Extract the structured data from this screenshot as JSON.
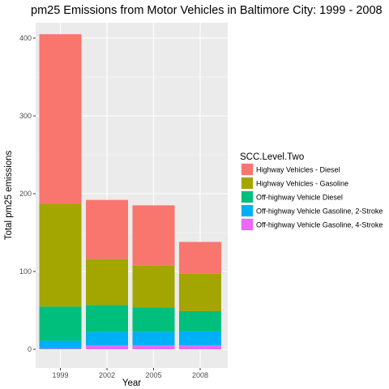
{
  "chart_data": {
    "type": "bar",
    "stacked": true,
    "title": "pm25 Emissions from Motor Vehicles in Baltimore City: 1999 - 2008",
    "xlabel": "Year",
    "ylabel": "Total pm25 emissions",
    "categories": [
      "1999",
      "2002",
      "2005",
      "2008"
    ],
    "ylim": [
      0,
      420
    ],
    "yticks": [
      0,
      100,
      200,
      300,
      400
    ],
    "grid": true,
    "legend": {
      "title": "SCC.Level.Two",
      "position": "right"
    },
    "series": [
      {
        "name": "Highway Vehicles - Diesel",
        "color": "#F8766D",
        "values": [
          218,
          76,
          77,
          41
        ]
      },
      {
        "name": "Highway Vehicles - Gasoline",
        "color": "#A3A500",
        "values": [
          132,
          59,
          54,
          48
        ]
      },
      {
        "name": "Off-highway Vehicle Diesel",
        "color": "#00BF7D",
        "values": [
          44,
          35,
          32,
          26
        ]
      },
      {
        "name": "Off-highway Vehicle Gasoline, 2-Stroke",
        "color": "#00B0F6",
        "values": [
          10,
          17,
          17,
          18
        ]
      },
      {
        "name": "Off-highway Vehicle Gasoline, 4-Stroke",
        "color": "#E76BF3",
        "values": [
          1,
          5,
          5,
          5
        ]
      }
    ]
  }
}
